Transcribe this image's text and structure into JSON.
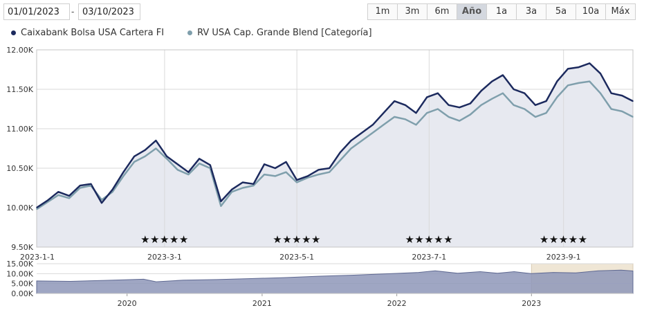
{
  "date_range": {
    "from": "01/01/2023",
    "separator": "-",
    "to": "03/10/2023"
  },
  "range_buttons": [
    {
      "label": "1m",
      "active": false
    },
    {
      "label": "3m",
      "active": false
    },
    {
      "label": "6m",
      "active": false
    },
    {
      "label": "Año",
      "active": true
    },
    {
      "label": "1a",
      "active": false
    },
    {
      "label": "3a",
      "active": false
    },
    {
      "label": "5a",
      "active": false
    },
    {
      "label": "10a",
      "active": false
    },
    {
      "label": "Máx",
      "active": false
    }
  ],
  "colors": {
    "fund": "#1c2a5e",
    "category": "#7f9fac",
    "area": "#e7e9f0",
    "navigator_area": "#8e97b8",
    "navigator_selection": "#efe6d5",
    "grid": "#d9d9d9"
  },
  "chart_data": [
    {
      "type": "line",
      "x_type": "date",
      "ylim": [
        9500,
        12000
      ],
      "yticks": [
        9500,
        10000,
        10500,
        11000,
        11500,
        12000
      ],
      "ytick_labels": [
        "9.50K",
        "10.00K",
        "10.50K",
        "11.00K",
        "11.50K",
        "12.00K"
      ],
      "xlim": [
        "2023-01-01",
        "2023-10-03"
      ],
      "xticks": [
        "2023-01-01",
        "2023-03-01",
        "2023-05-01",
        "2023-07-01",
        "2023-09-01"
      ],
      "xtick_labels": [
        "2023-1-1",
        "2023-3-1",
        "2023-5-1",
        "2023-7-1",
        "2023-9-1"
      ],
      "grid": true,
      "legend_position": "top-left",
      "series": [
        {
          "name": "Caixabank Bolsa USA Cartera FI",
          "area_fill": true,
          "points": [
            [
              "2023-01-01",
              10000
            ],
            [
              "2023-01-06",
              10090
            ],
            [
              "2023-01-11",
              10200
            ],
            [
              "2023-01-16",
              10150
            ],
            [
              "2023-01-21",
              10280
            ],
            [
              "2023-01-26",
              10300
            ],
            [
              "2023-01-31",
              10060
            ],
            [
              "2023-02-05",
              10230
            ],
            [
              "2023-02-10",
              10450
            ],
            [
              "2023-02-15",
              10650
            ],
            [
              "2023-02-20",
              10730
            ],
            [
              "2023-02-25",
              10850
            ],
            [
              "2023-03-02",
              10650
            ],
            [
              "2023-03-07",
              10550
            ],
            [
              "2023-03-12",
              10450
            ],
            [
              "2023-03-17",
              10620
            ],
            [
              "2023-03-22",
              10540
            ],
            [
              "2023-03-27",
              10080
            ],
            [
              "2023-04-01",
              10230
            ],
            [
              "2023-04-06",
              10320
            ],
            [
              "2023-04-11",
              10300
            ],
            [
              "2023-04-16",
              10550
            ],
            [
              "2023-04-21",
              10500
            ],
            [
              "2023-04-26",
              10580
            ],
            [
              "2023-05-01",
              10350
            ],
            [
              "2023-05-06",
              10400
            ],
            [
              "2023-05-11",
              10480
            ],
            [
              "2023-05-16",
              10500
            ],
            [
              "2023-05-21",
              10700
            ],
            [
              "2023-05-26",
              10850
            ],
            [
              "2023-05-31",
              10950
            ],
            [
              "2023-06-05",
              11050
            ],
            [
              "2023-06-10",
              11200
            ],
            [
              "2023-06-15",
              11350
            ],
            [
              "2023-06-20",
              11300
            ],
            [
              "2023-06-25",
              11200
            ],
            [
              "2023-06-30",
              11400
            ],
            [
              "2023-07-05",
              11450
            ],
            [
              "2023-07-10",
              11300
            ],
            [
              "2023-07-15",
              11270
            ],
            [
              "2023-07-20",
              11320
            ],
            [
              "2023-07-25",
              11480
            ],
            [
              "2023-07-30",
              11600
            ],
            [
              "2023-08-04",
              11680
            ],
            [
              "2023-08-09",
              11500
            ],
            [
              "2023-08-14",
              11450
            ],
            [
              "2023-08-19",
              11300
            ],
            [
              "2023-08-24",
              11350
            ],
            [
              "2023-08-29",
              11600
            ],
            [
              "2023-09-03",
              11760
            ],
            [
              "2023-09-08",
              11780
            ],
            [
              "2023-09-13",
              11830
            ],
            [
              "2023-09-18",
              11700
            ],
            [
              "2023-09-23",
              11450
            ],
            [
              "2023-09-28",
              11420
            ],
            [
              "2023-10-03",
              11350
            ]
          ]
        },
        {
          "name": "RV USA Cap. Grande Blend [Categoría]",
          "area_fill": false,
          "points": [
            [
              "2023-01-01",
              9980
            ],
            [
              "2023-01-06",
              10070
            ],
            [
              "2023-01-11",
              10160
            ],
            [
              "2023-01-16",
              10120
            ],
            [
              "2023-01-21",
              10250
            ],
            [
              "2023-01-26",
              10280
            ],
            [
              "2023-01-31",
              10100
            ],
            [
              "2023-02-05",
              10200
            ],
            [
              "2023-02-10",
              10400
            ],
            [
              "2023-02-15",
              10580
            ],
            [
              "2023-02-20",
              10650
            ],
            [
              "2023-02-25",
              10750
            ],
            [
              "2023-03-02",
              10620
            ],
            [
              "2023-03-07",
              10480
            ],
            [
              "2023-03-12",
              10420
            ],
            [
              "2023-03-17",
              10560
            ],
            [
              "2023-03-22",
              10500
            ],
            [
              "2023-03-27",
              10020
            ],
            [
              "2023-04-01",
              10200
            ],
            [
              "2023-04-06",
              10250
            ],
            [
              "2023-04-11",
              10280
            ],
            [
              "2023-04-16",
              10420
            ],
            [
              "2023-04-21",
              10400
            ],
            [
              "2023-04-26",
              10450
            ],
            [
              "2023-05-01",
              10320
            ],
            [
              "2023-05-06",
              10380
            ],
            [
              "2023-05-11",
              10420
            ],
            [
              "2023-05-16",
              10450
            ],
            [
              "2023-05-21",
              10600
            ],
            [
              "2023-05-26",
              10750
            ],
            [
              "2023-05-31",
              10850
            ],
            [
              "2023-06-05",
              10950
            ],
            [
              "2023-06-10",
              11050
            ],
            [
              "2023-06-15",
              11150
            ],
            [
              "2023-06-20",
              11120
            ],
            [
              "2023-06-25",
              11050
            ],
            [
              "2023-06-30",
              11200
            ],
            [
              "2023-07-05",
              11250
            ],
            [
              "2023-07-10",
              11150
            ],
            [
              "2023-07-15",
              11100
            ],
            [
              "2023-07-20",
              11180
            ],
            [
              "2023-07-25",
              11300
            ],
            [
              "2023-07-30",
              11380
            ],
            [
              "2023-08-04",
              11450
            ],
            [
              "2023-08-09",
              11300
            ],
            [
              "2023-08-14",
              11250
            ],
            [
              "2023-08-19",
              11150
            ],
            [
              "2023-08-24",
              11200
            ],
            [
              "2023-08-29",
              11400
            ],
            [
              "2023-09-03",
              11550
            ],
            [
              "2023-09-08",
              11580
            ],
            [
              "2023-09-13",
              11600
            ],
            [
              "2023-09-18",
              11450
            ],
            [
              "2023-09-23",
              11250
            ],
            [
              "2023-09-28",
              11220
            ],
            [
              "2023-10-03",
              11150
            ]
          ]
        }
      ],
      "rating_markers": [
        {
          "x": "2023-03-01",
          "text": "★★★★★"
        },
        {
          "x": "2023-05-01",
          "text": "★★★★★"
        },
        {
          "x": "2023-07-01",
          "text": "★★★★★"
        },
        {
          "x": "2023-09-01",
          "text": "★★★★★"
        }
      ]
    },
    {
      "type": "area",
      "x_type": "date",
      "ylim": [
        0,
        15000
      ],
      "yticks": [
        0,
        5000,
        10000,
        15000
      ],
      "ytick_labels": [
        "0.00K",
        "5.00K",
        "10.00K",
        "15.00K"
      ],
      "xlim": [
        "2019-05-01",
        "2023-10-03"
      ],
      "xticks": [
        "2020-01-01",
        "2021-01-01",
        "2022-01-01",
        "2023-01-01"
      ],
      "xtick_labels": [
        "2020",
        "2021",
        "2022",
        "2023"
      ],
      "selected_range": [
        "2023-01-01",
        "2023-10-03"
      ],
      "series": [
        {
          "points": [
            [
              "2019-05-01",
              6300
            ],
            [
              "2019-08-01",
              6100
            ],
            [
              "2019-11-01",
              6600
            ],
            [
              "2020-02-15",
              7200
            ],
            [
              "2020-03-20",
              5900
            ],
            [
              "2020-06-01",
              6700
            ],
            [
              "2020-09-01",
              7000
            ],
            [
              "2020-12-01",
              7500
            ],
            [
              "2021-03-01",
              8000
            ],
            [
              "2021-06-01",
              8700
            ],
            [
              "2021-09-01",
              9200
            ],
            [
              "2021-12-31",
              10100
            ],
            [
              "2022-03-01",
              10600
            ],
            [
              "2022-04-15",
              11400
            ],
            [
              "2022-06-15",
              10200
            ],
            [
              "2022-08-15",
              11000
            ],
            [
              "2022-10-01",
              10200
            ],
            [
              "2022-11-15",
              11000
            ],
            [
              "2022-12-31",
              10000
            ],
            [
              "2023-03-01",
              10600
            ],
            [
              "2023-05-01",
              10350
            ],
            [
              "2023-07-01",
              11400
            ],
            [
              "2023-09-01",
              11800
            ],
            [
              "2023-10-03",
              11350
            ]
          ]
        }
      ]
    }
  ]
}
